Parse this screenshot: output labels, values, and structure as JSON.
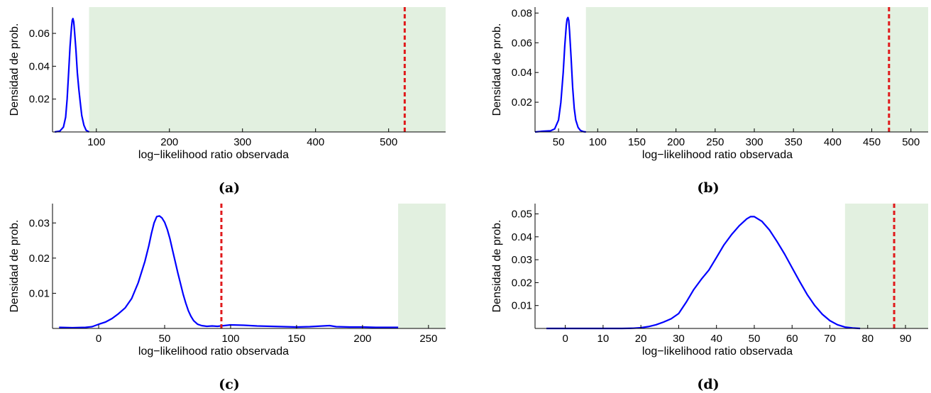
{
  "colors": {
    "density": "#0000ff",
    "observed": "#e0191b",
    "rejection_region": "#e2f0e0",
    "axis": "#000000"
  },
  "chart_data": [
    {
      "type": "line",
      "panel": "(a)",
      "caption": "(a)",
      "xlabel": "log−likelihood ratio observada",
      "ylabel": "Densidad de prob.",
      "xlim": [
        40,
        578
      ],
      "ylim": [
        0,
        0.076
      ],
      "xticks": [
        100,
        200,
        300,
        400,
        500
      ],
      "yticks": [
        0.02,
        0.04,
        0.06
      ],
      "ytick_labels": [
        "0.02",
        "0.04",
        "0.06"
      ],
      "shaded_region": [
        90,
        578
      ],
      "observed_value": 522,
      "series": [
        {
          "x": [
            43,
            50,
            55,
            58,
            60,
            62,
            64,
            66,
            67,
            68,
            69,
            70,
            72,
            74,
            76,
            78,
            80,
            83,
            86,
            90
          ],
          "y": [
            0,
            0.0005,
            0.003,
            0.009,
            0.02,
            0.036,
            0.052,
            0.064,
            0.068,
            0.069,
            0.067,
            0.062,
            0.05,
            0.036,
            0.026,
            0.018,
            0.01,
            0.004,
            0.001,
            0
          ]
        }
      ]
    },
    {
      "type": "line",
      "panel": "(b)",
      "caption": "(b)",
      "xlabel": "log−likelihood ratio observada",
      "ylabel": "Densidad de prob.",
      "xlim": [
        20,
        522
      ],
      "ylim": [
        0,
        0.084
      ],
      "xticks": [
        50,
        100,
        150,
        200,
        250,
        300,
        350,
        400,
        450,
        500
      ],
      "yticks": [
        0.02,
        0.04,
        0.06,
        0.08
      ],
      "ytick_labels": [
        "0.02",
        "0.04",
        "0.06",
        "0.08"
      ],
      "shaded_region": [
        85,
        522
      ],
      "observed_value": 472,
      "series": [
        {
          "x": [
            20,
            30,
            40,
            45,
            50,
            53,
            56,
            58,
            60,
            61,
            62,
            63,
            64,
            66,
            68,
            70,
            72,
            75,
            78,
            82,
            85
          ],
          "y": [
            0,
            0.0005,
            0.0008,
            0.002,
            0.008,
            0.02,
            0.04,
            0.058,
            0.072,
            0.076,
            0.077,
            0.075,
            0.068,
            0.05,
            0.03,
            0.016,
            0.008,
            0.003,
            0.001,
            0.0002,
            0
          ]
        }
      ]
    },
    {
      "type": "line",
      "panel": "(c)",
      "caption": "(c)",
      "xlabel": "log−likelihood ratio observada",
      "ylabel": "Densidad de prob.",
      "xlim": [
        -35,
        263
      ],
      "ylim": [
        0,
        0.0355
      ],
      "xticks": [
        0,
        50,
        100,
        150,
        200,
        250
      ],
      "yticks": [
        0.01,
        0.02,
        0.03
      ],
      "ytick_labels": [
        "0.01",
        "0.02",
        "0.03"
      ],
      "shaded_region": [
        227,
        263
      ],
      "observed_value": 93,
      "series": [
        {
          "x": [
            -30,
            -20,
            -10,
            -5,
            0,
            5,
            10,
            15,
            20,
            25,
            30,
            35,
            38,
            40,
            42,
            44,
            46,
            48,
            50,
            52,
            54,
            56,
            58,
            60,
            62,
            64,
            66,
            68,
            70,
            72,
            75,
            78,
            82,
            86,
            90,
            95,
            100,
            110,
            120,
            130,
            140,
            150,
            160,
            170,
            175,
            180,
            190,
            200,
            210,
            220,
            227
          ],
          "y": [
            0.0003,
            0.0002,
            0.0003,
            0.0005,
            0.0012,
            0.0018,
            0.0028,
            0.0042,
            0.0058,
            0.0085,
            0.013,
            0.019,
            0.0235,
            0.027,
            0.03,
            0.0318,
            0.032,
            0.0314,
            0.0302,
            0.0282,
            0.0255,
            0.0222,
            0.019,
            0.0158,
            0.0128,
            0.0098,
            0.0072,
            0.005,
            0.0034,
            0.0022,
            0.0012,
            0.0008,
            0.0006,
            0.0007,
            0.0006,
            0.0008,
            0.001,
            0.0009,
            0.0007,
            0.0006,
            0.0005,
            0.0004,
            0.0005,
            0.0007,
            0.0008,
            0.0005,
            0.0004,
            0.0004,
            0.0003,
            0.0003,
            0.0003
          ]
        }
      ]
    },
    {
      "type": "line",
      "panel": "(d)",
      "caption": "(d)",
      "xlabel": "log−likelihood ratio observada",
      "ylabel": "Densidad de prob.",
      "xlim": [
        -8,
        96
      ],
      "ylim": [
        0,
        0.0545
      ],
      "xticks": [
        0,
        10,
        20,
        30,
        40,
        50,
        60,
        70,
        80,
        90
      ],
      "yticks": [
        0.01,
        0.02,
        0.03,
        0.04,
        0.05
      ],
      "ytick_labels": [
        "0.01",
        "0.02",
        "0.03",
        "0.04",
        "0.05"
      ],
      "shaded_region": [
        74,
        96
      ],
      "observed_value": 87,
      "series": [
        {
          "x": [
            -5,
            0,
            5,
            10,
            15,
            18,
            20,
            22,
            24,
            26,
            28,
            30,
            32,
            34,
            36,
            38,
            40,
            42,
            44,
            46,
            48,
            49,
            50,
            52,
            54,
            56,
            58,
            60,
            62,
            64,
            66,
            68,
            70,
            72,
            74,
            76,
            78
          ],
          "y": [
            0,
            0,
            0,
            0,
            0,
            0.0001,
            0.0003,
            0.0008,
            0.0016,
            0.0028,
            0.0042,
            0.0065,
            0.0115,
            0.017,
            0.0215,
            0.0255,
            0.031,
            0.0365,
            0.041,
            0.0448,
            0.0478,
            0.0488,
            0.0488,
            0.0468,
            0.043,
            0.038,
            0.0325,
            0.0265,
            0.0205,
            0.0148,
            0.01,
            0.0062,
            0.0034,
            0.0016,
            0.0006,
            0.0002,
            0
          ]
        }
      ]
    }
  ]
}
